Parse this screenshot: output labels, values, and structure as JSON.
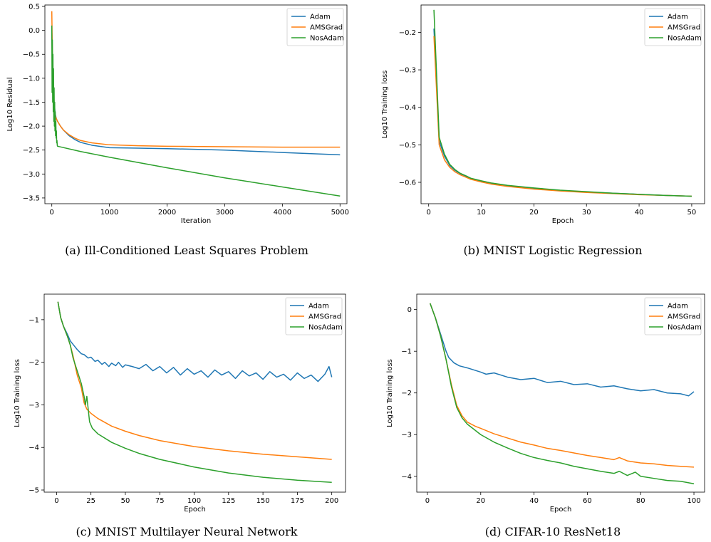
{
  "colors": {
    "Adam": "#1f77b4",
    "AMSGrad": "#ff7f0e",
    "NosAdam": "#2ca02c"
  },
  "chart_data": [
    {
      "type": "line",
      "caption": "(a) Ill-Conditioned Least Squares Problem",
      "xlabel": "Iteration",
      "ylabel": "Log10 Residual",
      "xlim": [
        -120,
        5120
      ],
      "ylim": [
        -3.62,
        0.53
      ],
      "xticks": [
        0,
        1000,
        2000,
        3000,
        4000,
        5000
      ],
      "yticks": [
        0.5,
        0.0,
        -0.5,
        -1.0,
        -1.5,
        -2.0,
        -2.5,
        -3.0,
        -3.5
      ],
      "xtick_labels": [
        "0",
        "1000",
        "2000",
        "3000",
        "4000",
        "5000"
      ],
      "ytick_labels": [
        "0.5",
        "0.0",
        "−0.5",
        "−1.0",
        "−1.5",
        "−2.0",
        "−2.5",
        "−3.0",
        "−3.5"
      ],
      "legend": "top-right",
      "series": [
        {
          "name": "Adam",
          "x": [
            0,
            10,
            20,
            40,
            60,
            80,
            100,
            150,
            200,
            300,
            400,
            500,
            700,
            1000,
            1500,
            2000,
            3000,
            4000,
            5000
          ],
          "y": [
            0.0,
            -0.6,
            -1.1,
            -1.5,
            -1.75,
            -1.85,
            -1.9,
            -2.0,
            -2.08,
            -2.2,
            -2.28,
            -2.34,
            -2.4,
            -2.45,
            -2.46,
            -2.47,
            -2.5,
            -2.55,
            -2.6
          ]
        },
        {
          "name": "AMSGrad",
          "x": [
            0,
            10,
            20,
            40,
            60,
            80,
            100,
            150,
            200,
            300,
            400,
            500,
            700,
            1000,
            1500,
            2000,
            3000,
            4000,
            5000
          ],
          "y": [
            0.4,
            -0.5,
            -1.2,
            -1.6,
            -1.78,
            -1.85,
            -1.9,
            -2.0,
            -2.08,
            -2.18,
            -2.25,
            -2.3,
            -2.35,
            -2.39,
            -2.41,
            -2.42,
            -2.43,
            -2.44,
            -2.44
          ]
        },
        {
          "name": "NosAdam",
          "x": [
            0,
            5,
            10,
            15,
            20,
            25,
            30,
            35,
            40,
            45,
            50,
            55,
            60,
            65,
            70,
            75,
            80,
            85,
            90,
            95,
            100,
            500,
            1000,
            2000,
            3000,
            4000,
            5000
          ],
          "y": [
            0.1,
            -1.3,
            -0.2,
            -1.5,
            -0.5,
            -1.7,
            -0.8,
            -1.9,
            -1.2,
            -2.0,
            -1.5,
            -2.1,
            -1.7,
            -2.2,
            -1.9,
            -2.25,
            -2.1,
            -2.35,
            -2.3,
            -2.4,
            -2.42,
            -2.53,
            -2.65,
            -2.87,
            -3.08,
            -3.27,
            -3.46
          ]
        }
      ]
    },
    {
      "type": "line",
      "caption": "(b) MNIST Logistic Regression",
      "xlabel": "Epoch",
      "ylabel": "Log10 Training loss",
      "xlim": [
        -1.45,
        52.45
      ],
      "ylim": [
        -0.657,
        -0.127
      ],
      "xticks": [
        0,
        10,
        20,
        30,
        40,
        50
      ],
      "yticks": [
        -0.2,
        -0.3,
        -0.4,
        -0.5,
        -0.6
      ],
      "xtick_labels": [
        "0",
        "10",
        "20",
        "30",
        "40",
        "50"
      ],
      "ytick_labels": [
        "−0.2",
        "−0.3",
        "−0.4",
        "−0.5",
        "−0.6"
      ],
      "legend": "top-right",
      "series": [
        {
          "name": "Adam",
          "x": [
            1,
            2,
            3,
            4,
            5,
            6,
            7,
            8,
            10,
            12,
            15,
            20,
            25,
            30,
            35,
            40,
            45,
            50
          ],
          "y": [
            -0.19,
            -0.49,
            -0.53,
            -0.555,
            -0.568,
            -0.577,
            -0.583,
            -0.59,
            -0.597,
            -0.603,
            -0.609,
            -0.616,
            -0.622,
            -0.626,
            -0.629,
            -0.632,
            -0.635,
            -0.637
          ]
        },
        {
          "name": "AMSGrad",
          "x": [
            1,
            2,
            3,
            4,
            5,
            6,
            7,
            8,
            10,
            12,
            15,
            20,
            25,
            30,
            35,
            40,
            45,
            50
          ],
          "y": [
            -0.21,
            -0.5,
            -0.54,
            -0.56,
            -0.572,
            -0.58,
            -0.586,
            -0.592,
            -0.599,
            -0.605,
            -0.611,
            -0.618,
            -0.623,
            -0.627,
            -0.63,
            -0.633,
            -0.635,
            -0.637
          ]
        },
        {
          "name": "NosAdam",
          "x": [
            1,
            2,
            3,
            4,
            5,
            6,
            7,
            8,
            10,
            12,
            15,
            20,
            25,
            30,
            35,
            40,
            45,
            50
          ],
          "y": [
            -0.14,
            -0.48,
            -0.525,
            -0.552,
            -0.566,
            -0.576,
            -0.582,
            -0.589,
            -0.596,
            -0.602,
            -0.608,
            -0.615,
            -0.621,
            -0.625,
            -0.629,
            -0.632,
            -0.635,
            -0.637
          ]
        }
      ]
    },
    {
      "type": "line",
      "caption": "(c) MNIST Multilayer Neural Network",
      "xlabel": "Epoch",
      "ylabel": "Log10 Training loss",
      "xlim": [
        -9,
        210
      ],
      "ylim": [
        -5.05,
        -0.4
      ],
      "xticks": [
        0,
        25,
        50,
        75,
        100,
        125,
        150,
        175,
        200
      ],
      "yticks": [
        -1,
        -2,
        -3,
        -4,
        -5
      ],
      "xtick_labels": [
        "0",
        "25",
        "50",
        "75",
        "100",
        "125",
        "150",
        "175",
        "200"
      ],
      "ytick_labels": [
        "−1",
        "−2",
        "−3",
        "−4",
        "−5"
      ],
      "legend": "top-right",
      "series": [
        {
          "name": "Adam",
          "x": [
            1,
            3,
            5,
            8,
            10,
            12,
            15,
            18,
            20,
            23,
            25,
            28,
            30,
            33,
            35,
            38,
            40,
            43,
            45,
            48,
            50,
            55,
            60,
            65,
            70,
            75,
            80,
            85,
            90,
            95,
            100,
            105,
            110,
            115,
            120,
            125,
            130,
            135,
            140,
            145,
            150,
            155,
            160,
            165,
            170,
            175,
            180,
            185,
            190,
            195,
            198,
            200
          ],
          "y": [
            -0.58,
            -0.95,
            -1.15,
            -1.35,
            -1.5,
            -1.58,
            -1.7,
            -1.8,
            -1.82,
            -1.9,
            -1.88,
            -1.98,
            -1.95,
            -2.05,
            -2.0,
            -2.1,
            -2.02,
            -2.08,
            -2.0,
            -2.12,
            -2.06,
            -2.1,
            -2.15,
            -2.05,
            -2.2,
            -2.1,
            -2.25,
            -2.12,
            -2.3,
            -2.15,
            -2.28,
            -2.2,
            -2.35,
            -2.18,
            -2.3,
            -2.22,
            -2.38,
            -2.2,
            -2.32,
            -2.25,
            -2.4,
            -2.22,
            -2.35,
            -2.28,
            -2.42,
            -2.25,
            -2.38,
            -2.3,
            -2.45,
            -2.28,
            -2.1,
            -2.35
          ]
        },
        {
          "name": "AMSGrad",
          "x": [
            1,
            3,
            5,
            8,
            10,
            12,
            15,
            18,
            20,
            22,
            25,
            30,
            40,
            50,
            60,
            75,
            100,
            125,
            150,
            175,
            200
          ],
          "y": [
            -0.58,
            -0.95,
            -1.15,
            -1.4,
            -1.6,
            -1.85,
            -2.3,
            -2.6,
            -2.95,
            -3.1,
            -3.2,
            -3.32,
            -3.5,
            -3.62,
            -3.72,
            -3.84,
            -3.98,
            -4.08,
            -4.16,
            -4.22,
            -4.28
          ]
        },
        {
          "name": "NosAdam",
          "x": [
            1,
            3,
            5,
            8,
            10,
            12,
            15,
            18,
            20,
            21,
            22,
            23,
            24,
            26,
            30,
            40,
            50,
            60,
            75,
            100,
            125,
            150,
            175,
            200
          ],
          "y": [
            -0.58,
            -0.95,
            -1.15,
            -1.4,
            -1.6,
            -1.9,
            -2.2,
            -2.5,
            -2.8,
            -3.0,
            -2.8,
            -3.1,
            -3.4,
            -3.55,
            -3.68,
            -3.88,
            -4.02,
            -4.14,
            -4.28,
            -4.46,
            -4.6,
            -4.7,
            -4.77,
            -4.82
          ]
        }
      ]
    },
    {
      "type": "line",
      "caption": "(d) CIFAR-10 ResNet18",
      "xlabel": "Epoch",
      "ylabel": "Log10 Training loss",
      "xlim": [
        -4,
        104
      ],
      "ylim": [
        -4.38,
        0.37
      ],
      "xticks": [
        0,
        20,
        40,
        60,
        80,
        100
      ],
      "yticks": [
        0,
        -1,
        -2,
        -3,
        -4
      ],
      "xtick_labels": [
        "0",
        "20",
        "40",
        "60",
        "80",
        "100"
      ],
      "ytick_labels": [
        "0",
        "−1",
        "−2",
        "−3",
        "−4"
      ],
      "legend": "top-right",
      "series": [
        {
          "name": "Adam",
          "x": [
            1,
            3,
            5,
            7,
            8,
            10,
            12,
            15,
            20,
            22,
            25,
            30,
            35,
            40,
            45,
            50,
            55,
            60,
            65,
            70,
            75,
            80,
            85,
            90,
            95,
            98,
            100
          ],
          "y": [
            0.15,
            -0.2,
            -0.6,
            -1.0,
            -1.15,
            -1.28,
            -1.35,
            -1.4,
            -1.5,
            -1.55,
            -1.52,
            -1.62,
            -1.68,
            -1.65,
            -1.75,
            -1.72,
            -1.8,
            -1.78,
            -1.86,
            -1.83,
            -1.9,
            -1.95,
            -1.92,
            -2.0,
            -2.02,
            -2.07,
            -1.97
          ]
        },
        {
          "name": "AMSGrad",
          "x": [
            1,
            3,
            5,
            7,
            9,
            11,
            13,
            15,
            18,
            20,
            25,
            30,
            35,
            40,
            45,
            50,
            55,
            60,
            65,
            70,
            72,
            75,
            80,
            85,
            90,
            95,
            100
          ],
          "y": [
            0.15,
            -0.2,
            -0.65,
            -1.2,
            -1.8,
            -2.3,
            -2.55,
            -2.7,
            -2.8,
            -2.85,
            -2.98,
            -3.08,
            -3.18,
            -3.25,
            -3.33,
            -3.38,
            -3.44,
            -3.5,
            -3.55,
            -3.6,
            -3.55,
            -3.63,
            -3.68,
            -3.7,
            -3.74,
            -3.76,
            -3.78
          ]
        },
        {
          "name": "NosAdam",
          "x": [
            1,
            3,
            5,
            7,
            9,
            11,
            13,
            15,
            18,
            20,
            25,
            30,
            35,
            40,
            45,
            50,
            55,
            60,
            65,
            70,
            72,
            75,
            78,
            80,
            85,
            90,
            95,
            100
          ],
          "y": [
            0.15,
            -0.2,
            -0.65,
            -1.2,
            -1.85,
            -2.35,
            -2.6,
            -2.75,
            -2.9,
            -3.0,
            -3.18,
            -3.32,
            -3.45,
            -3.55,
            -3.62,
            -3.68,
            -3.76,
            -3.82,
            -3.88,
            -3.93,
            -3.88,
            -3.98,
            -3.9,
            -4.0,
            -4.05,
            -4.1,
            -4.12,
            -4.18
          ]
        }
      ]
    }
  ]
}
